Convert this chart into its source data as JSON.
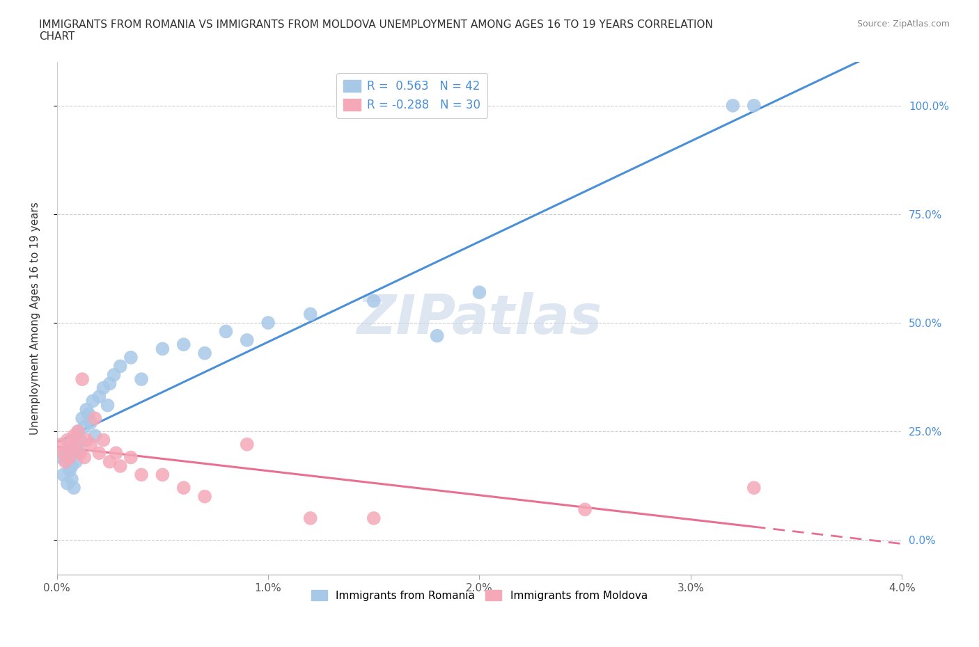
{
  "title": "IMMIGRANTS FROM ROMANIA VS IMMIGRANTS FROM MOLDOVA UNEMPLOYMENT AMONG AGES 16 TO 19 YEARS CORRELATION\nCHART",
  "source": "Source: ZipAtlas.com",
  "ylabel": "Unemployment Among Ages 16 to 19 years",
  "xlim": [
    0.0,
    0.04
  ],
  "ylim": [
    -0.08,
    1.1
  ],
  "xticks": [
    0.0,
    0.01,
    0.02,
    0.03,
    0.04
  ],
  "xtick_labels": [
    "0.0%",
    "1.0%",
    "2.0%",
    "3.0%",
    "4.0%"
  ],
  "ytick_labels": [
    "0.0%",
    "25.0%",
    "50.0%",
    "75.0%",
    "100.0%"
  ],
  "yticks": [
    0.0,
    0.25,
    0.5,
    0.75,
    1.0
  ],
  "romania_R": 0.563,
  "romania_N": 42,
  "moldova_R": -0.288,
  "moldova_N": 30,
  "romania_color": "#a8c8e8",
  "moldova_color": "#f4a8b8",
  "trend_romania_color": "#4a90d9",
  "trend_moldova_color": "#e87090",
  "watermark": "ZIPatlas",
  "watermark_color": "#c8d8e8",
  "romania_x": [
    0.0002,
    0.0003,
    0.0004,
    0.0005,
    0.0005,
    0.0006,
    0.0006,
    0.0007,
    0.0007,
    0.0008,
    0.0008,
    0.0009,
    0.001,
    0.001,
    0.0011,
    0.0012,
    0.0013,
    0.0014,
    0.0015,
    0.0016,
    0.0017,
    0.0018,
    0.002,
    0.0022,
    0.0024,
    0.0025,
    0.0027,
    0.003,
    0.0035,
    0.004,
    0.005,
    0.006,
    0.007,
    0.008,
    0.009,
    0.01,
    0.012,
    0.015,
    0.018,
    0.02,
    0.032,
    0.033
  ],
  "romania_y": [
    0.19,
    0.15,
    0.2,
    0.18,
    0.13,
    0.16,
    0.22,
    0.17,
    0.14,
    0.2,
    0.12,
    0.18,
    0.21,
    0.25,
    0.23,
    0.28,
    0.26,
    0.3,
    0.29,
    0.27,
    0.32,
    0.24,
    0.33,
    0.35,
    0.31,
    0.36,
    0.38,
    0.4,
    0.42,
    0.37,
    0.44,
    0.45,
    0.43,
    0.48,
    0.46,
    0.5,
    0.52,
    0.55,
    0.47,
    0.57,
    1.0,
    1.0
  ],
  "moldova_x": [
    0.0002,
    0.0003,
    0.0004,
    0.0005,
    0.0006,
    0.0007,
    0.0008,
    0.0009,
    0.001,
    0.0011,
    0.0012,
    0.0013,
    0.0014,
    0.0016,
    0.0018,
    0.002,
    0.0022,
    0.0025,
    0.0028,
    0.003,
    0.0035,
    0.004,
    0.005,
    0.006,
    0.007,
    0.009,
    0.012,
    0.015,
    0.025,
    0.033
  ],
  "moldova_y": [
    0.22,
    0.2,
    0.18,
    0.23,
    0.19,
    0.21,
    0.24,
    0.22,
    0.25,
    0.2,
    0.37,
    0.19,
    0.23,
    0.22,
    0.28,
    0.2,
    0.23,
    0.18,
    0.2,
    0.17,
    0.19,
    0.15,
    0.15,
    0.12,
    0.1,
    0.22,
    0.05,
    0.05,
    0.07,
    0.12
  ]
}
